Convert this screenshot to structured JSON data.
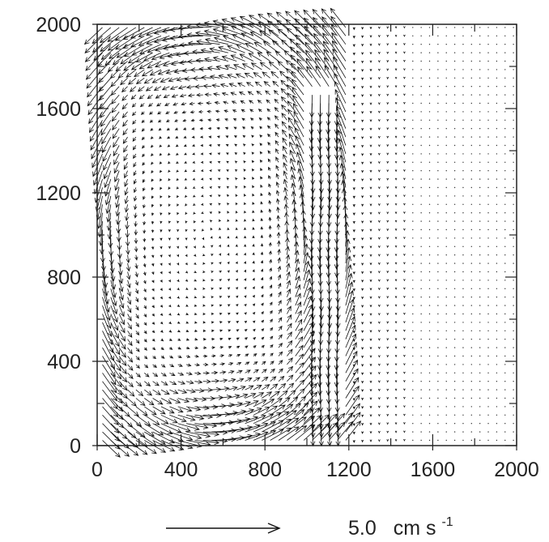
{
  "chart_data": {
    "type": "vector-field",
    "title": "",
    "xlabel": "",
    "ylabel": "",
    "xlim": [
      0,
      2000
    ],
    "ylim": [
      0,
      2000
    ],
    "x_ticks": [
      0,
      400,
      800,
      1200,
      1600,
      2000
    ],
    "y_ticks": [
      0,
      400,
      800,
      1200,
      1600,
      2000
    ],
    "x_tick_labels": [
      "0",
      "400",
      "800",
      "1200",
      "1600",
      "2000"
    ],
    "y_tick_labels": [
      "0",
      "400",
      "800",
      "1200",
      "1600",
      "2000"
    ],
    "minor_tick_step": 200,
    "grid": false,
    "reference_vector": {
      "magnitude": 5.0,
      "value_label": "5.0",
      "unit_label": "cm s",
      "unit_exponent": "-1"
    },
    "field": {
      "grid_spacing": 50,
      "gyre_center": [
        520,
        1000
      ],
      "eastern_jet_x": [
        1000,
        1150
      ],
      "quiet_region_start_x": 1300,
      "max_speed": 6.0
    },
    "colors": {
      "axis": "#222222",
      "arrow": "#111111"
    }
  }
}
